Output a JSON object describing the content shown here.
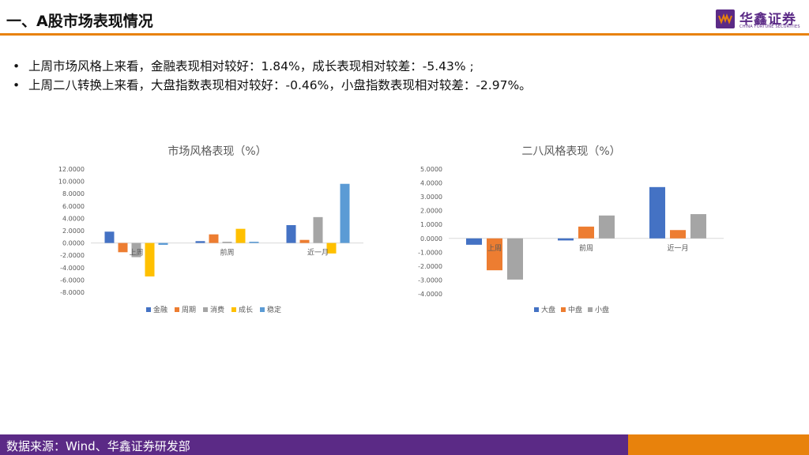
{
  "header": {
    "title": "一、A股市场表现情况",
    "logo_name": "华鑫证券",
    "logo_en": "CHINA FORTUNE SECURITIES"
  },
  "bullets": [
    "上周市场风格上来看，金融表现相对较好：1.84%，成长表现相对较差：-5.43% ;",
    "上周二八转换上来看，大盘指数表现相对较好：-0.46%，小盘指数表现相对较差：-2.97%。"
  ],
  "bullet_symbol": "•",
  "footer": {
    "source": "数据来源：Wind、华鑫证券研发部"
  },
  "colors": {
    "accent_orange": "#e8820c",
    "brand_purple": "#5b2a86"
  },
  "chart_data": [
    {
      "type": "bar",
      "title": "市场风格表现（%）",
      "categories": [
        "上周",
        "前周",
        "近一月"
      ],
      "ylim": [
        -8,
        12
      ],
      "yticks": [
        12,
        10,
        8,
        6,
        4,
        2,
        0,
        -2,
        -4,
        -6,
        -8
      ],
      "ytick_labels": [
        "12.0000",
        "10.0000",
        "8.0000",
        "6.0000",
        "4.0000",
        "2.0000",
        "0.0000",
        "-2.0000",
        "-4.0000",
        "-6.0000",
        "-8.0000"
      ],
      "grid": false,
      "legend_position": "bottom",
      "series": [
        {
          "name": "金融",
          "color": "#4472c4",
          "values": [
            1.84,
            0.3,
            2.9
          ]
        },
        {
          "name": "周期",
          "color": "#ed7d31",
          "values": [
            -1.5,
            1.4,
            0.5
          ]
        },
        {
          "name": "消费",
          "color": "#a5a5a5",
          "values": [
            -2.3,
            0.2,
            4.2
          ]
        },
        {
          "name": "成长",
          "color": "#ffc000",
          "values": [
            -5.43,
            2.3,
            -1.7
          ]
        },
        {
          "name": "稳定",
          "color": "#5b9bd5",
          "values": [
            -0.3,
            0.2,
            9.6
          ]
        }
      ]
    },
    {
      "type": "bar",
      "title": "二八风格表现（%）",
      "categories": [
        "上周",
        "前周",
        "近一月"
      ],
      "ylim": [
        -4,
        5
      ],
      "yticks": [
        5,
        4,
        3,
        2,
        1,
        0,
        -1,
        -2,
        -3,
        -4
      ],
      "ytick_labels": [
        "5.0000",
        "4.0000",
        "3.0000",
        "2.0000",
        "1.0000",
        "0.0000",
        "-1.0000",
        "-2.0000",
        "-3.0000",
        "-4.0000"
      ],
      "grid": false,
      "legend_position": "bottom",
      "series": [
        {
          "name": "大盘",
          "color": "#4472c4",
          "values": [
            -0.46,
            -0.15,
            3.7
          ]
        },
        {
          "name": "中盘",
          "color": "#ed7d31",
          "values": [
            -2.3,
            0.85,
            0.6
          ]
        },
        {
          "name": "小盘",
          "color": "#a5a5a5",
          "values": [
            -2.97,
            1.65,
            1.75
          ]
        }
      ]
    }
  ]
}
